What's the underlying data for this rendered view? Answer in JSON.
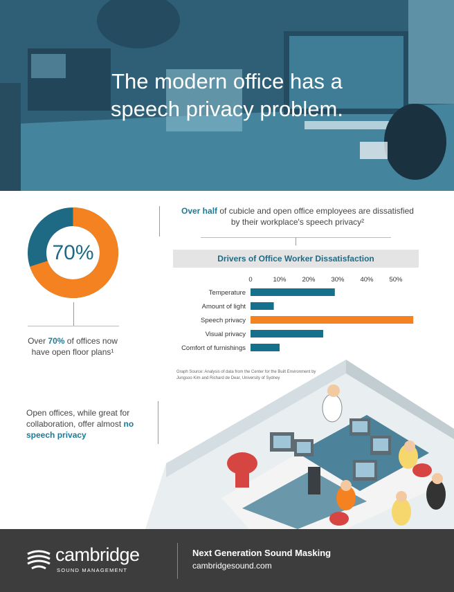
{
  "hero": {
    "title_line1": "The modern office has a",
    "title_line2": "speech privacy problem."
  },
  "stat": {
    "percent_label": "70%",
    "percent_value": 70,
    "caption_pre": "Over ",
    "caption_bold": "70%",
    "caption_post": " of offices now",
    "caption_line2": "have open floor plans¹",
    "colors": {
      "primary": "#f58220",
      "secondary": "#1e6a84"
    }
  },
  "headline": {
    "bold": "Over half",
    "rest": " of cubicle and open office employees are dissatisfied",
    "line2": "by their workplace's speech privacy²"
  },
  "chart_data": {
    "type": "bar",
    "orientation": "horizontal",
    "title": "Drivers of Office Worker Dissatisfaction",
    "categories": [
      "Temperature",
      "Amount of light",
      "Speech privacy",
      "Visual privacy",
      "Comfort of furnishings"
    ],
    "values": [
      29,
      8,
      56,
      25,
      10
    ],
    "highlight_index": 2,
    "x_ticks": [
      "0",
      "10%",
      "20%",
      "30%",
      "40%",
      "50%"
    ],
    "xlim": [
      0,
      55
    ],
    "colors": {
      "bar": "#15708b",
      "highlight": "#f58220"
    }
  },
  "source": {
    "line1": "Graph Source: Analysis of data from the Center for the Built Environment by",
    "line2": "Jungsoo Kim and Richard de Dear, University of Sydney"
  },
  "open_office": {
    "text": "Open offices, while great for collaboration, offer almost",
    "bold": "no speech privacy"
  },
  "footer": {
    "logo_word": "cambridge",
    "logo_sub": "SOUND MANAGEMENT",
    "tagline": "Next Generation Sound Masking",
    "website": "cambridgesound.com"
  }
}
